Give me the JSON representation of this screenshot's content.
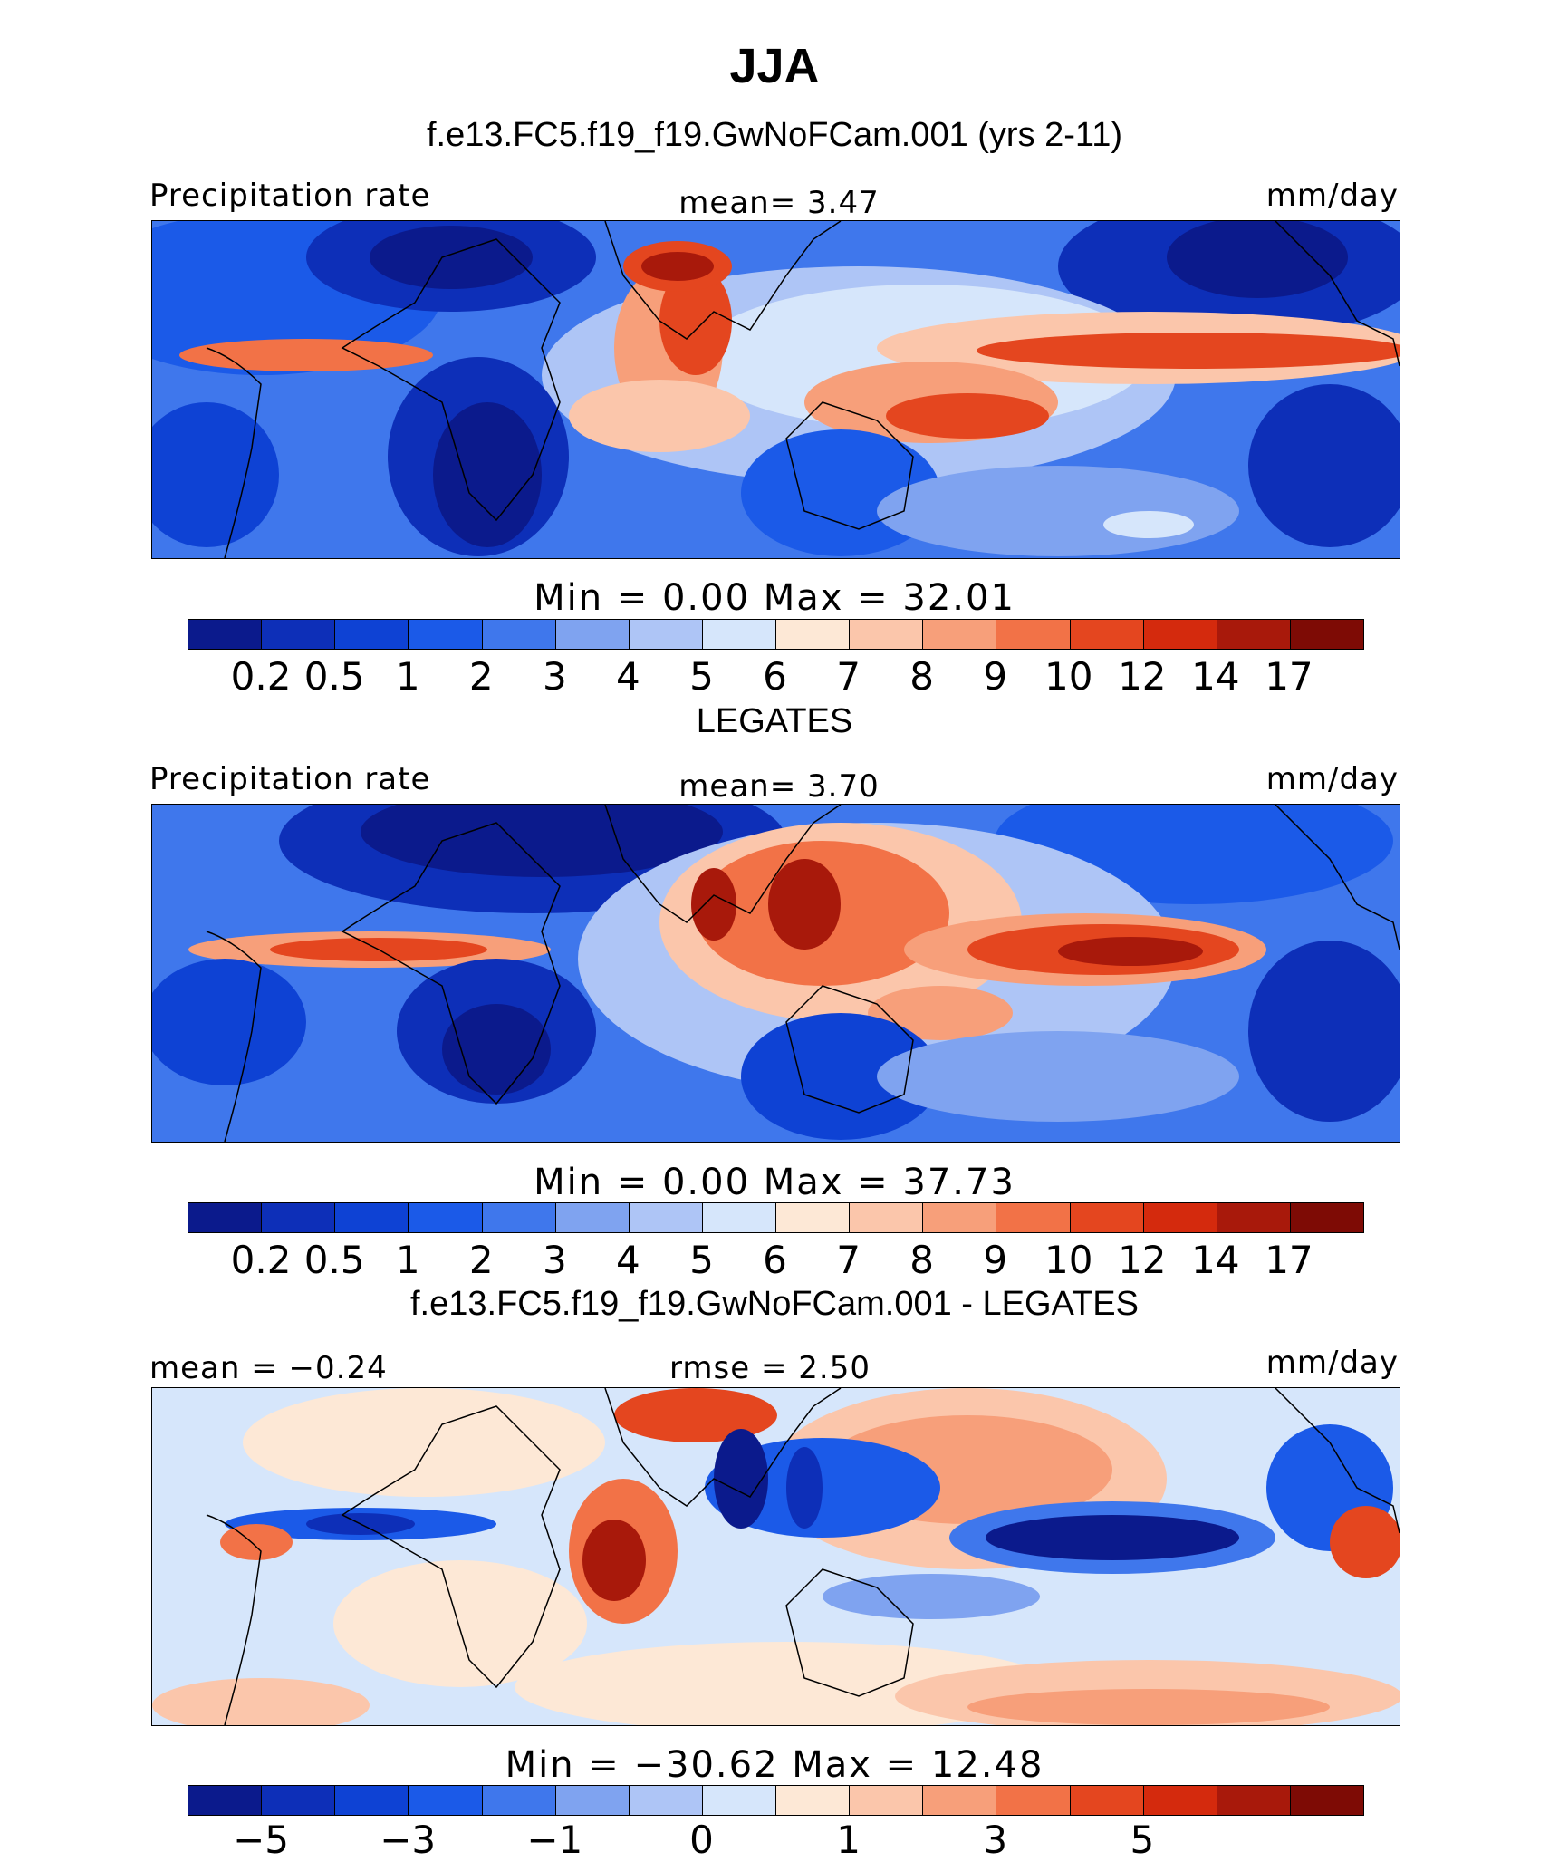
{
  "title": "JJA",
  "palette": {
    "precip": [
      "#0b1a8c",
      "#0d2fb8",
      "#0e42d4",
      "#1b5ae8",
      "#3f77ec",
      "#7fa3f0",
      "#aec5f6",
      "#d6e6fb",
      "#fde8d6",
      "#fbc6ab",
      "#f79f7a",
      "#f27247",
      "#e4461f",
      "#d42a0d",
      "#a8190b",
      "#7e0b05"
    ],
    "diff": [
      "#0b1a8c",
      "#0d2fb8",
      "#0e42d4",
      "#1b5ae8",
      "#3f77ec",
      "#7fa3f0",
      "#aec5f6",
      "#d6e6fb",
      "#fde8d6",
      "#fbc6ab",
      "#f79f7a",
      "#f27247",
      "#e4461f",
      "#d42a0d",
      "#a8190b",
      "#7e0b05"
    ]
  },
  "panels": [
    {
      "id": "model",
      "subtitle": "f.e13.FC5.f19_f19.GwNoFCam.001 (yrs 2-11)",
      "left_label": "Precipitation  rate",
      "center_label": "mean=     3.47",
      "right_label": "mm/day",
      "minmax": "Min  =      0.00  Max  =    32.01",
      "colorbar_ticks": [
        "0.2",
        "0.5",
        "1",
        "2",
        "3",
        "4",
        "5",
        "6",
        "7",
        "8",
        "9",
        "10",
        "12",
        "14",
        "17"
      ]
    },
    {
      "id": "obs",
      "subtitle": "LEGATES",
      "left_label": "Precipitation  rate",
      "center_label": "mean=     3.70",
      "right_label": "mm/day",
      "minmax": "Min  =      0.00  Max  =    37.73",
      "colorbar_ticks": [
        "0.2",
        "0.5",
        "1",
        "2",
        "3",
        "4",
        "5",
        "6",
        "7",
        "8",
        "9",
        "10",
        "12",
        "14",
        "17"
      ]
    },
    {
      "id": "diff",
      "subtitle": "f.e13.FC5.f19_f19.GwNoFCam.001 - LEGATES",
      "left_label": "mean  =   −0.24",
      "center_label": "rmse  =     2.50",
      "right_label": "mm/day",
      "minmax": "Min  =  −30.62  Max  =    12.48",
      "colorbar_ticks": [
        "−5",
        "−3",
        "−1",
        "0",
        "1",
        "3",
        "5"
      ]
    }
  ]
}
